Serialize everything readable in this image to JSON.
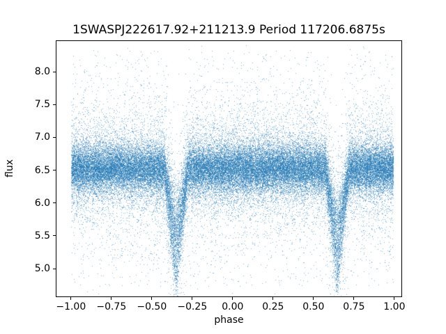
{
  "chart_data": {
    "type": "scatter",
    "title": "1SWASPJ222617.92+211213.9 Period 117206.6875s",
    "xlabel": "phase",
    "ylabel": "flux",
    "xlim": [
      -1.094,
      1.048
    ],
    "ylim": [
      4.566,
      8.478
    ],
    "xticks": [
      -1.0,
      -0.75,
      -0.5,
      -0.25,
      0.0,
      0.25,
      0.5,
      0.75,
      1.0
    ],
    "xtick_labels": [
      "−1.00",
      "−0.75",
      "−0.50",
      "−0.25",
      "0.00",
      "0.25",
      "0.50",
      "0.75",
      "1.00"
    ],
    "yticks": [
      5.0,
      5.5,
      6.0,
      6.5,
      7.0,
      7.5,
      8.0
    ],
    "ytick_labels": [
      "5.0",
      "5.5",
      "6.0",
      "6.5",
      "7.0",
      "7.5",
      "8.0"
    ],
    "grid": false,
    "legend": null,
    "marker_color": "#1f77b4",
    "marker_alpha": 0.55,
    "marker_size_px": 1,
    "n_points": 55000,
    "seed": 7,
    "x_data_range": [
      -1.0,
      1.0
    ],
    "band": {
      "center_flux": 6.52,
      "core_frac": 0.62,
      "core_sigma": 0.17,
      "mid_frac": 0.23,
      "mid_sigma": 0.33,
      "wide_frac": 0.12,
      "wide_sigma": 0.62,
      "uniform_frac": 0.03,
      "uniform_range": [
        4.72,
        8.33
      ]
    },
    "eclipses": [
      {
        "phase": -0.35,
        "half_width": 0.075,
        "depth": 1.85,
        "min_frac": 0.3
      },
      {
        "phase": 0.65,
        "half_width": 0.075,
        "depth": 1.85,
        "min_frac": 0.3
      }
    ]
  },
  "colors": {
    "background": "#ffffff",
    "spine": "#000000",
    "text": "#000000"
  }
}
